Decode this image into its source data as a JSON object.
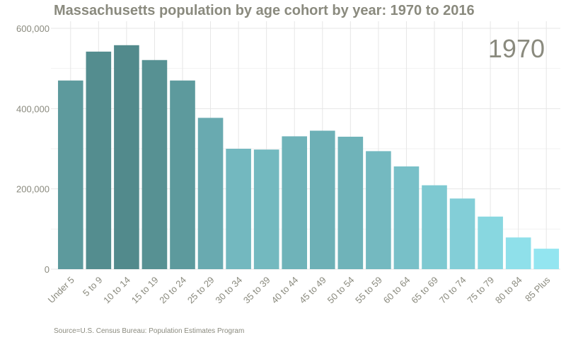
{
  "chart_data": {
    "type": "bar",
    "title": "Massachusetts population by age cohort by year: 1970 to 2016",
    "annotation": "1970",
    "source": "Source=U.S. Census Bureau: Population Estimates Program",
    "categories": [
      "Under 5",
      "5 to 9",
      "10 to 14",
      "15 to 19",
      "20 to 24",
      "25 to 29",
      "30 to 34",
      "35 to 39",
      "40 to 44",
      "45 to 49",
      "50 to 54",
      "55 to 59",
      "60 to 64",
      "65 to 69",
      "70 to 74",
      "75 to 79",
      "80 to 84",
      "85 Plus"
    ],
    "values": [
      470000,
      542000,
      558000,
      521000,
      470000,
      377000,
      300000,
      298000,
      331000,
      345000,
      330000,
      294000,
      256000,
      209000,
      176000,
      131000,
      79000,
      51000
    ],
    "ylim": [
      0,
      600000
    ],
    "yticks": [
      0,
      200000,
      400000,
      600000
    ],
    "ytick_labels": [
      "0",
      "200,000",
      "400,000",
      "600,000"
    ],
    "grid": true,
    "legend": "none",
    "color_low": "#99eefa",
    "color_high": "#528a8c"
  }
}
